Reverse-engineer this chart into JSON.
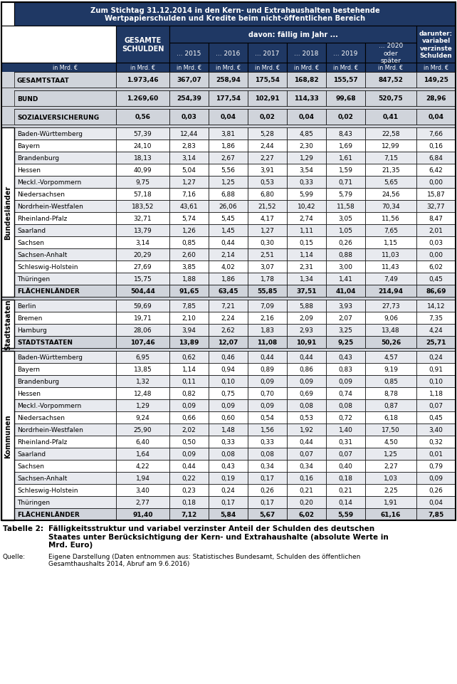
{
  "header_title": "Zum Stichtag 31.12.2014 in den Kern- und Extrahaushalten bestehende\nWertpapierschulden und Kredite beim nicht-öffentlichen Bereich",
  "rows": [
    {
      "label": "GESAMTSTAAT",
      "values": [
        "1.973,46",
        "367,07",
        "258,94",
        "175,54",
        "168,82",
        "155,57",
        "847,52",
        "149,25"
      ],
      "type": "main_total",
      "group": "",
      "sep_after": true
    },
    {
      "label": "BUND",
      "values": [
        "1.269,60",
        "254,39",
        "177,54",
        "102,91",
        "114,33",
        "99,68",
        "520,75",
        "28,96"
      ],
      "type": "main_total",
      "group": "",
      "sep_after": true
    },
    {
      "label": "SOZIALVERSICHERUNG",
      "values": [
        "0,56",
        "0,03",
        "0,04",
        "0,02",
        "0,04",
        "0,02",
        "0,41",
        "0,04"
      ],
      "type": "main_total",
      "group": "",
      "sep_after": true
    },
    {
      "label": "Baden-Württemberg",
      "values": [
        "57,39",
        "12,44",
        "3,81",
        "5,28",
        "4,85",
        "8,43",
        "22,58",
        "7,66"
      ],
      "type": "state",
      "group": "Bundesländer",
      "sep_after": false
    },
    {
      "label": "Bayern",
      "values": [
        "24,10",
        "2,83",
        "1,86",
        "2,44",
        "2,30",
        "1,69",
        "12,99",
        "0,16"
      ],
      "type": "state",
      "group": "Bundesländer",
      "sep_after": false
    },
    {
      "label": "Brandenburg",
      "values": [
        "18,13",
        "3,14",
        "2,67",
        "2,27",
        "1,29",
        "1,61",
        "7,15",
        "6,84"
      ],
      "type": "state",
      "group": "Bundesländer",
      "sep_after": false
    },
    {
      "label": "Hessen",
      "values": [
        "40,99",
        "5,04",
        "5,56",
        "3,91",
        "3,54",
        "1,59",
        "21,35",
        "6,42"
      ],
      "type": "state",
      "group": "Bundesländer",
      "sep_after": false
    },
    {
      "label": "Meckl.-Vorpommern",
      "values": [
        "9,75",
        "1,27",
        "1,25",
        "0,53",
        "0,33",
        "0,71",
        "5,65",
        "0,00"
      ],
      "type": "state",
      "group": "Bundesländer",
      "sep_after": false
    },
    {
      "label": "Niedersachsen",
      "values": [
        "57,18",
        "7,16",
        "6,88",
        "6,80",
        "5,99",
        "5,79",
        "24,56",
        "15,87"
      ],
      "type": "state",
      "group": "Bundesländer",
      "sep_after": false
    },
    {
      "label": "Nordrhein-Westfalen",
      "values": [
        "183,52",
        "43,61",
        "26,06",
        "21,52",
        "10,42",
        "11,58",
        "70,34",
        "32,77"
      ],
      "type": "state",
      "group": "Bundesländer",
      "sep_after": false
    },
    {
      "label": "Rheinland-Pfalz",
      "values": [
        "32,71",
        "5,74",
        "5,45",
        "4,17",
        "2,74",
        "3,05",
        "11,56",
        "8,47"
      ],
      "type": "state",
      "group": "Bundesländer",
      "sep_after": false
    },
    {
      "label": "Saarland",
      "values": [
        "13,79",
        "1,26",
        "1,45",
        "1,27",
        "1,11",
        "1,05",
        "7,65",
        "2,01"
      ],
      "type": "state",
      "group": "Bundesländer",
      "sep_after": false
    },
    {
      "label": "Sachsen",
      "values": [
        "3,14",
        "0,85",
        "0,44",
        "0,30",
        "0,15",
        "0,26",
        "1,15",
        "0,03"
      ],
      "type": "state",
      "group": "Bundesländer",
      "sep_after": false
    },
    {
      "label": "Sachsen-Anhalt",
      "values": [
        "20,29",
        "2,60",
        "2,14",
        "2,51",
        "1,14",
        "0,88",
        "11,03",
        "0,00"
      ],
      "type": "state",
      "group": "Bundesländer",
      "sep_after": false
    },
    {
      "label": "Schleswig-Holstein",
      "values": [
        "27,69",
        "3,85",
        "4,02",
        "3,07",
        "2,31",
        "3,00",
        "11,43",
        "6,02"
      ],
      "type": "state",
      "group": "Bundesländer",
      "sep_after": false
    },
    {
      "label": "Thüringen",
      "values": [
        "15,75",
        "1,88",
        "1,86",
        "1,78",
        "1,34",
        "1,41",
        "7,49",
        "0,45"
      ],
      "type": "state",
      "group": "Bundesländer",
      "sep_after": false
    },
    {
      "label": "FLÄCHENLÄNDER",
      "values": [
        "504,44",
        "91,65",
        "63,45",
        "55,85",
        "37,51",
        "41,04",
        "214,94",
        "86,69"
      ],
      "type": "subtotal",
      "group": "Bundesländer",
      "sep_after": true
    },
    {
      "label": "Berlin",
      "values": [
        "59,69",
        "7,85",
        "7,21",
        "7,09",
        "5,88",
        "3,93",
        "27,73",
        "14,12"
      ],
      "type": "state",
      "group": "Stadtstaaten",
      "sep_after": false
    },
    {
      "label": "Bremen",
      "values": [
        "19,71",
        "2,10",
        "2,24",
        "2,16",
        "2,09",
        "2,07",
        "9,06",
        "7,35"
      ],
      "type": "state",
      "group": "Stadtstaaten",
      "sep_after": false
    },
    {
      "label": "Hamburg",
      "values": [
        "28,06",
        "3,94",
        "2,62",
        "1,83",
        "2,93",
        "3,25",
        "13,48",
        "4,24"
      ],
      "type": "state",
      "group": "Stadtstaaten",
      "sep_after": false
    },
    {
      "label": "STADTSTAATEN",
      "values": [
        "107,46",
        "13,89",
        "12,07",
        "11,08",
        "10,91",
        "9,25",
        "50,26",
        "25,71"
      ],
      "type": "subtotal",
      "group": "Stadtstaaten",
      "sep_after": true
    },
    {
      "label": "Baden-Württemberg",
      "values": [
        "6,95",
        "0,62",
        "0,46",
        "0,44",
        "0,44",
        "0,43",
        "4,57",
        "0,24"
      ],
      "type": "state",
      "group": "Kommunen",
      "sep_after": false
    },
    {
      "label": "Bayern",
      "values": [
        "13,85",
        "1,14",
        "0,94",
        "0,89",
        "0,86",
        "0,83",
        "9,19",
        "0,91"
      ],
      "type": "state",
      "group": "Kommunen",
      "sep_after": false
    },
    {
      "label": "Brandenburg",
      "values": [
        "1,32",
        "0,11",
        "0,10",
        "0,09",
        "0,09",
        "0,09",
        "0,85",
        "0,10"
      ],
      "type": "state",
      "group": "Kommunen",
      "sep_after": false
    },
    {
      "label": "Hessen",
      "values": [
        "12,48",
        "0,82",
        "0,75",
        "0,70",
        "0,69",
        "0,74",
        "8,78",
        "1,18"
      ],
      "type": "state",
      "group": "Kommunen",
      "sep_after": false
    },
    {
      "label": "Meckl.-Vorpommern",
      "values": [
        "1,29",
        "0,09",
        "0,09",
        "0,09",
        "0,08",
        "0,08",
        "0,87",
        "0,07"
      ],
      "type": "state",
      "group": "Kommunen",
      "sep_after": false
    },
    {
      "label": "Niedersachsen",
      "values": [
        "9,24",
        "0,66",
        "0,60",
        "0,54",
        "0,53",
        "0,72",
        "6,18",
        "0,45"
      ],
      "type": "state",
      "group": "Kommunen",
      "sep_after": false
    },
    {
      "label": "Nordrhein-Westfalen",
      "values": [
        "25,90",
        "2,02",
        "1,48",
        "1,56",
        "1,92",
        "1,40",
        "17,50",
        "3,40"
      ],
      "type": "state",
      "group": "Kommunen",
      "sep_after": false
    },
    {
      "label": "Rheinland-Pfalz",
      "values": [
        "6,40",
        "0,50",
        "0,33",
        "0,33",
        "0,44",
        "0,31",
        "4,50",
        "0,32"
      ],
      "type": "state",
      "group": "Kommunen",
      "sep_after": false
    },
    {
      "label": "Saarland",
      "values": [
        "1,64",
        "0,09",
        "0,08",
        "0,08",
        "0,07",
        "0,07",
        "1,25",
        "0,01"
      ],
      "type": "state",
      "group": "Kommunen",
      "sep_after": false
    },
    {
      "label": "Sachsen",
      "values": [
        "4,22",
        "0,44",
        "0,43",
        "0,34",
        "0,34",
        "0,40",
        "2,27",
        "0,79"
      ],
      "type": "state",
      "group": "Kommunen",
      "sep_after": false
    },
    {
      "label": "Sachsen-Anhalt",
      "values": [
        "1,94",
        "0,22",
        "0,19",
        "0,17",
        "0,16",
        "0,18",
        "1,03",
        "0,09"
      ],
      "type": "state",
      "group": "Kommunen",
      "sep_after": false
    },
    {
      "label": "Schleswig-Holstein",
      "values": [
        "3,40",
        "0,23",
        "0,24",
        "0,26",
        "0,21",
        "0,21",
        "2,25",
        "0,26"
      ],
      "type": "state",
      "group": "Kommunen",
      "sep_after": false
    },
    {
      "label": "Thüringen",
      "values": [
        "2,77",
        "0,18",
        "0,17",
        "0,17",
        "0,20",
        "0,14",
        "1,91",
        "0,04"
      ],
      "type": "state",
      "group": "Kommunen",
      "sep_after": false
    },
    {
      "label": "FLÄCHENLÄNDER",
      "values": [
        "91,40",
        "7,12",
        "5,84",
        "5,67",
        "6,02",
        "5,59",
        "61,16",
        "7,85"
      ],
      "type": "subtotal",
      "group": "Kommunen",
      "sep_after": false
    }
  ],
  "caption_label": "Tabelle 2:",
  "caption_text": "Fälligkeitsstruktur und variabel verzinster Anteil der Schulden des deutschen\nStaates unter Berücksichtigung der Kern- und Extrahaushalte (absolute Werte in\nMrd. Euro)",
  "source_label": "Quelle:",
  "source_text": "Eigene Darstellung (Daten entnommen aus: Statistisches Bundesamt, Schulden des öffentlichen\nGesamthaushalts 2014, Abruf am 9.6.2016)",
  "header_bg": "#1f3864",
  "header_fg": "#ffffff",
  "main_total_bg": "#d0d4db",
  "main_total_fg": "#000000",
  "subtotal_bg": "#d0d4db",
  "subtotal_fg": "#000000",
  "state_odd_bg": "#ffffff",
  "state_even_bg": "#e8eaef",
  "state_fg": "#000000",
  "sep_bg": "#d0d4db",
  "border_color": "#000000"
}
